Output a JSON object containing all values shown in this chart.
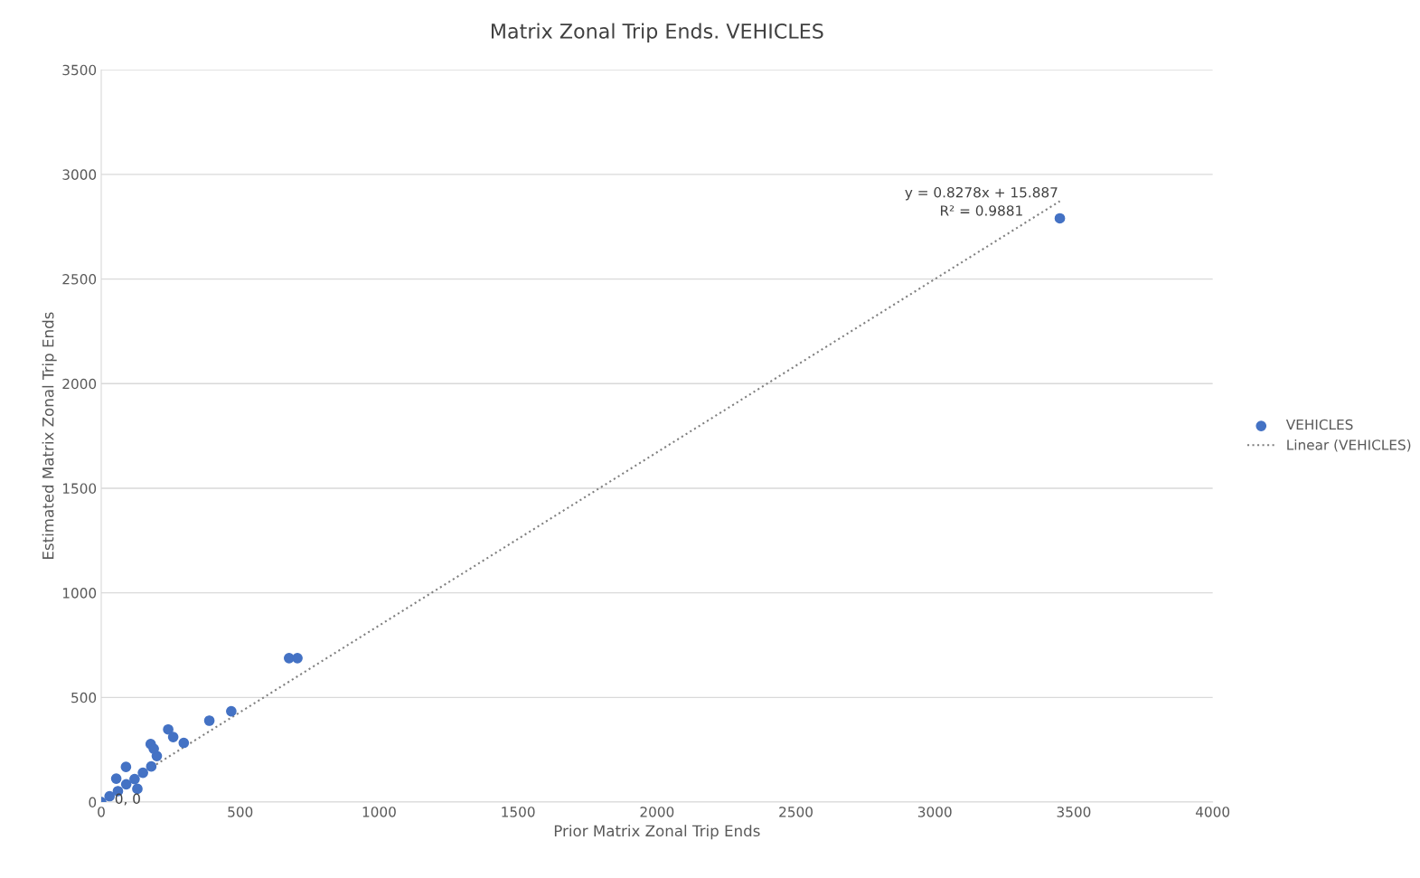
{
  "chart_data": {
    "type": "scatter",
    "title": "Matrix Zonal Trip Ends. VEHICLES",
    "xlabel": "Prior Matrix Zonal Trip Ends",
    "ylabel": "Estimated Matrix Zonal Trip Ends",
    "xlim": [
      0,
      4000
    ],
    "xticks": [
      0,
      500,
      1000,
      1500,
      2000,
      2500,
      3000,
      3500,
      4000
    ],
    "ylim": [
      0,
      3500
    ],
    "yticks": [
      0,
      500,
      1000,
      1500,
      2000,
      2500,
      3000,
      3500
    ],
    "grid": "y",
    "legend": "right",
    "marker": "circle",
    "series": [
      {
        "name": "VEHICLES",
        "color": "#4472c4",
        "x": [
          0,
          30,
          60,
          90,
          120,
          150,
          180,
          200,
          89,
          54,
          130,
          178,
          189,
          241,
          259,
          297,
          389,
          468,
          676,
          706,
          3450
        ],
        "values": [
          0,
          28,
          52,
          85,
          110,
          140,
          170,
          220,
          168,
          112,
          63,
          277,
          255,
          347,
          311,
          283,
          389,
          434,
          688,
          688,
          2790
        ]
      },
      {
        "name": "Linear (VEHICLES)",
        "type": "line",
        "color": "#808080",
        "line_style": "dotted",
        "marker": "none",
        "x": [
          0,
          3450
        ],
        "values": [
          16,
          2872
        ]
      }
    ],
    "annotations": [
      "0, 0",
      "y = 0.8278x + 15.887",
      "R² = 0.9881"
    ]
  }
}
